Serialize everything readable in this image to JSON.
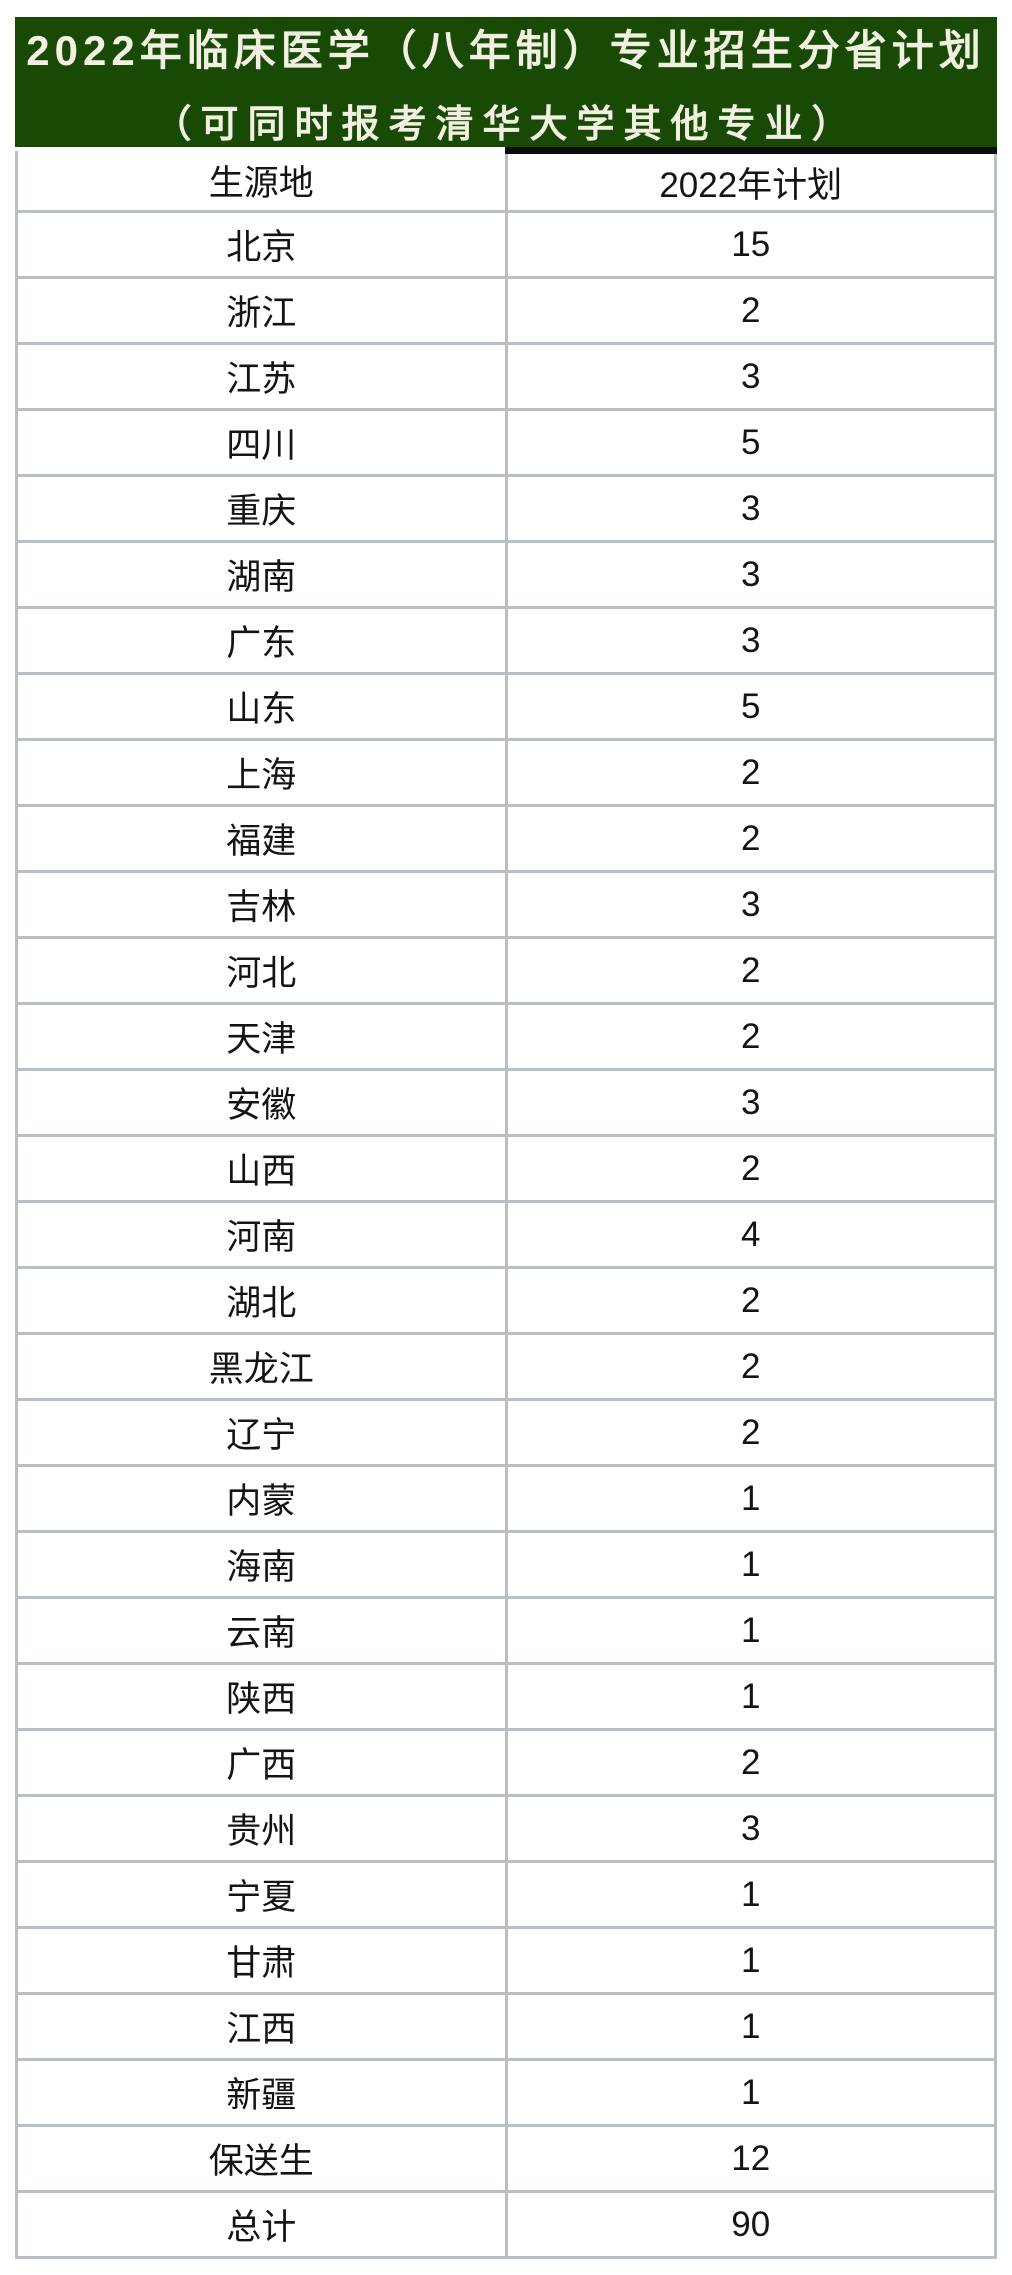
{
  "header": {
    "title": "2022年临床医学（八年制）专业招生分省计划",
    "subtitle": "（可同时报考清华大学其他专业）"
  },
  "colors": {
    "banner_bg": "#184a05",
    "banner_text": "#f1f0e2",
    "grid_border": "#b9bfc7",
    "plan_column_top_bar": "#0d0d0d"
  },
  "table": {
    "columns": [
      "生源地",
      "2022年计划"
    ],
    "rows": [
      {
        "province": "北京",
        "plan": "15"
      },
      {
        "province": "浙江",
        "plan": "2"
      },
      {
        "province": "江苏",
        "plan": "3"
      },
      {
        "province": "四川",
        "plan": "5"
      },
      {
        "province": "重庆",
        "plan": "3"
      },
      {
        "province": "湖南",
        "plan": "3"
      },
      {
        "province": "广东",
        "plan": "3"
      },
      {
        "province": "山东",
        "plan": "5"
      },
      {
        "province": "上海",
        "plan": "2"
      },
      {
        "province": "福建",
        "plan": "2"
      },
      {
        "province": "吉林",
        "plan": "3"
      },
      {
        "province": "河北",
        "plan": "2"
      },
      {
        "province": "天津",
        "plan": "2"
      },
      {
        "province": "安徽",
        "plan": "3"
      },
      {
        "province": "山西",
        "plan": "2"
      },
      {
        "province": "河南",
        "plan": "4"
      },
      {
        "province": "湖北",
        "plan": "2"
      },
      {
        "province": "黑龙江",
        "plan": "2"
      },
      {
        "province": "辽宁",
        "plan": "2"
      },
      {
        "province": "内蒙",
        "plan": "1"
      },
      {
        "province": "海南",
        "plan": "1"
      },
      {
        "province": "云南",
        "plan": "1"
      },
      {
        "province": "陕西",
        "plan": "1"
      },
      {
        "province": "广西",
        "plan": "2"
      },
      {
        "province": "贵州",
        "plan": "3"
      },
      {
        "province": "宁夏",
        "plan": "1"
      },
      {
        "province": "甘肃",
        "plan": "1"
      },
      {
        "province": "江西",
        "plan": "1"
      },
      {
        "province": "新疆",
        "plan": "1"
      },
      {
        "province": "保送生",
        "plan": "12"
      },
      {
        "province": "总计",
        "plan": "90"
      }
    ]
  }
}
